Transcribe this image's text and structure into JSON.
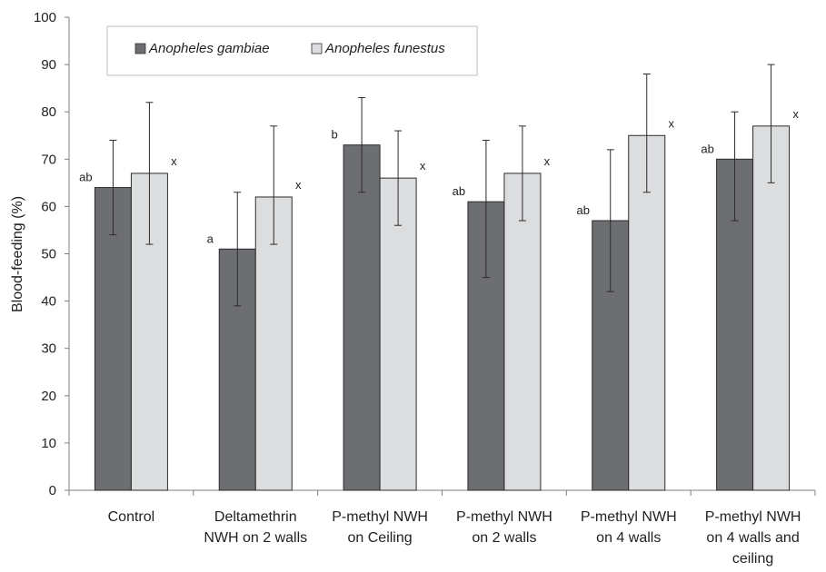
{
  "chart_data": {
    "type": "bar",
    "title": "",
    "xlabel": "",
    "ylabel": "Blood-feeding (%)",
    "ylim": [
      0,
      100
    ],
    "yticks": [
      0,
      10,
      20,
      30,
      40,
      50,
      60,
      70,
      80,
      90,
      100
    ],
    "grid": false,
    "legend_position": "top-left",
    "categories": [
      [
        "Control"
      ],
      [
        "Deltamethrin",
        "NWH on 2 walls"
      ],
      [
        "P-methyl NWH",
        "on Ceiling"
      ],
      [
        "P-methyl NWH",
        "on 2 walls"
      ],
      [
        "P-methyl NWH",
        "on 4 walls"
      ],
      [
        "P-methyl NWH",
        "on 4 walls and",
        "ceiling"
      ]
    ],
    "series": [
      {
        "name": "Anopheles gambiae",
        "color": "#6d6e71",
        "values": [
          64,
          51,
          73,
          61,
          57,
          70
        ],
        "error_low": [
          54,
          39,
          63,
          45,
          42,
          57
        ],
        "error_high": [
          74,
          63,
          83,
          74,
          72,
          80
        ],
        "labels": [
          "ab",
          "a",
          "b",
          "ab",
          "ab",
          "ab"
        ]
      },
      {
        "name": "Anopheles funestus",
        "color": "#dcdddf",
        "values": [
          67,
          62,
          66,
          67,
          75,
          77
        ],
        "error_low": [
          52,
          52,
          56,
          57,
          63,
          65
        ],
        "error_high": [
          82,
          77,
          76,
          77,
          88,
          90
        ],
        "labels": [
          "x",
          "x",
          "x",
          "x",
          "x",
          "x"
        ]
      }
    ]
  }
}
